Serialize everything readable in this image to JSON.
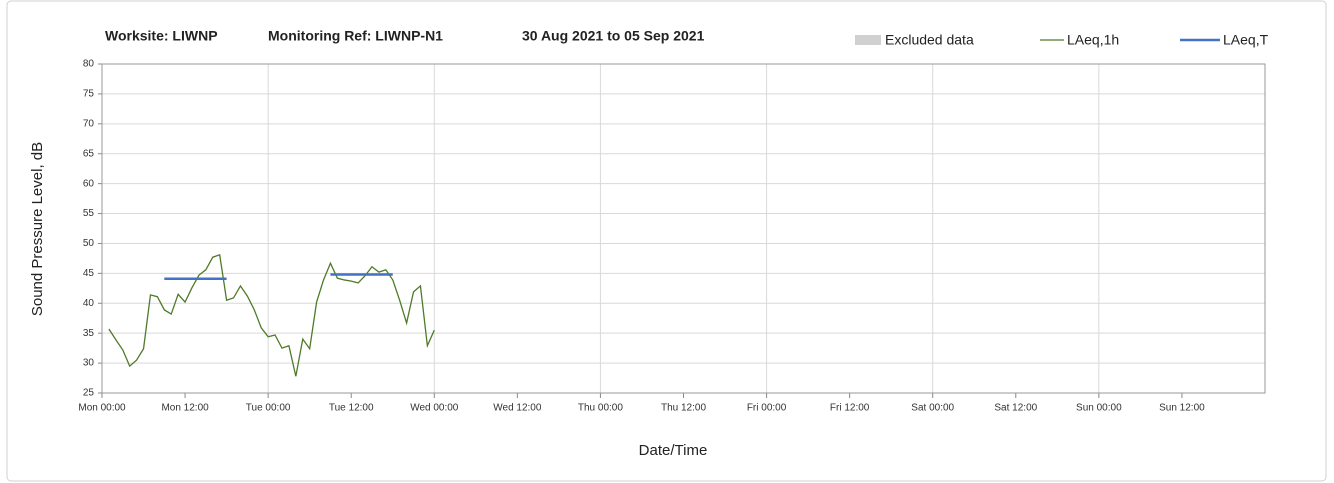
{
  "chart_data": {
    "type": "line",
    "title_parts": [
      "Worksite: LIWNP",
      "Monitoring Ref: LIWNP-N1",
      "30 Aug 2021 to 05 Sep 2021"
    ],
    "xlabel": "Date/Time",
    "ylabel": "Sound Pressure Level, dB",
    "xlim": [
      0,
      168
    ],
    "xticks": [
      {
        "value": 0,
        "label": "Mon 00:00"
      },
      {
        "value": 12,
        "label": "Mon 12:00"
      },
      {
        "value": 24,
        "label": "Tue 00:00"
      },
      {
        "value": 36,
        "label": "Tue 12:00"
      },
      {
        "value": 48,
        "label": "Wed 00:00"
      },
      {
        "value": 60,
        "label": "Wed 12:00"
      },
      {
        "value": 72,
        "label": "Thu 00:00"
      },
      {
        "value": 84,
        "label": "Thu 12:00"
      },
      {
        "value": 96,
        "label": "Fri 00:00"
      },
      {
        "value": 108,
        "label": "Fri 12:00"
      },
      {
        "value": 120,
        "label": "Sat 00:00"
      },
      {
        "value": 132,
        "label": "Sat 12:00"
      },
      {
        "value": 144,
        "label": "Sun 00:00"
      },
      {
        "value": 156,
        "label": "Sun 12:00"
      }
    ],
    "ylim": [
      25,
      80
    ],
    "yticks": [
      25,
      30,
      35,
      40,
      45,
      50,
      55,
      60,
      65,
      70,
      75,
      80
    ],
    "grid": true,
    "legend": "top-right",
    "series": [
      {
        "name": "Excluded data",
        "color": "#d0d0d0",
        "kind": "area",
        "x": [],
        "values": []
      },
      {
        "name": "LAeq,1h",
        "color": "#4f7a28",
        "kind": "line",
        "x": [
          1,
          2,
          3,
          4,
          5,
          6,
          7,
          8,
          9,
          10,
          11,
          12,
          13,
          14,
          15,
          16,
          17,
          18,
          19,
          20,
          21,
          22,
          23,
          24,
          25,
          26,
          27,
          28,
          29,
          30,
          31,
          32,
          33,
          34,
          35,
          36,
          37,
          38,
          39,
          40,
          41,
          42,
          43,
          44,
          45,
          46,
          47,
          48
        ],
        "values": [
          35.7,
          33.9,
          32.2,
          29.5,
          30.5,
          32.4,
          41.4,
          41.1,
          38.9,
          38.2,
          41.5,
          40.2,
          42.6,
          44.7,
          45.6,
          47.7,
          48.1,
          40.5,
          40.9,
          42.9,
          41.2,
          38.9,
          35.9,
          34.4,
          34.7,
          32.5,
          32.9,
          27.8,
          34.0,
          32.4,
          40.2,
          43.9,
          46.7,
          44.2,
          43.9,
          43.7,
          43.4,
          44.6,
          46.1,
          45.2,
          45.6,
          43.9,
          40.5,
          36.7,
          41.9,
          42.9,
          32.9,
          35.5
        ]
      },
      {
        "name": "LAeq,T",
        "color": "#4472c4",
        "kind": "line",
        "x": [
          9,
          18,
          null,
          33,
          42
        ],
        "values": [
          44.1,
          44.1,
          null,
          44.8,
          44.8
        ]
      }
    ]
  }
}
